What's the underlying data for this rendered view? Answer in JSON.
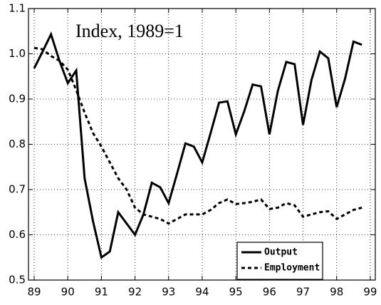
{
  "chart_data": {
    "type": "line",
    "annotation": "Index, 1989=1",
    "x": [
      89,
      89.25,
      89.5,
      89.75,
      90,
      90.25,
      90.5,
      90.75,
      91,
      91.25,
      91.5,
      91.75,
      92,
      92.25,
      92.5,
      92.75,
      93,
      93.25,
      93.5,
      93.75,
      94,
      94.25,
      94.5,
      94.75,
      95,
      95.25,
      95.5,
      95.75,
      96,
      96.25,
      96.5,
      96.75,
      97,
      97.25,
      97.5,
      97.75,
      98,
      98.25,
      98.5,
      98.75
    ],
    "series": [
      {
        "name": "Output",
        "color": "#000000",
        "line_style": "solid",
        "values": [
          0.968,
          1.005,
          1.043,
          0.985,
          0.935,
          0.963,
          0.725,
          0.63,
          0.55,
          0.563,
          0.65,
          0.625,
          0.6,
          0.645,
          0.715,
          0.705,
          0.67,
          0.735,
          0.802,
          0.795,
          0.76,
          0.825,
          0.892,
          0.895,
          0.822,
          0.873,
          0.932,
          0.928,
          0.822,
          0.918,
          0.982,
          0.977,
          0.843,
          0.942,
          1.005,
          0.99,
          0.882,
          0.945,
          1.027,
          1.02
        ]
      },
      {
        "name": "Employment",
        "color": "#000000",
        "line_style": "dotted",
        "values": [
          1.013,
          1.01,
          0.995,
          0.985,
          0.965,
          0.92,
          0.87,
          0.825,
          0.795,
          0.76,
          0.725,
          0.7,
          0.66,
          0.645,
          0.64,
          0.635,
          0.625,
          0.635,
          0.645,
          0.645,
          0.645,
          0.655,
          0.67,
          0.678,
          0.668,
          0.67,
          0.673,
          0.678,
          0.657,
          0.66,
          0.67,
          0.665,
          0.64,
          0.645,
          0.65,
          0.652,
          0.635,
          0.645,
          0.655,
          0.66
        ]
      }
    ],
    "xlim": [
      88.83,
      99.15
    ],
    "xticks": [
      89,
      90,
      91,
      92,
      93,
      94,
      95,
      96,
      97,
      98,
      99
    ],
    "ylim": [
      0.5,
      1.1
    ],
    "yticks": [
      0.5,
      0.6,
      0.7,
      0.8,
      0.9,
      {
        "value": 1,
        "label": "1.0"
      },
      1.1
    ],
    "grid": true,
    "legend": "lower right"
  }
}
